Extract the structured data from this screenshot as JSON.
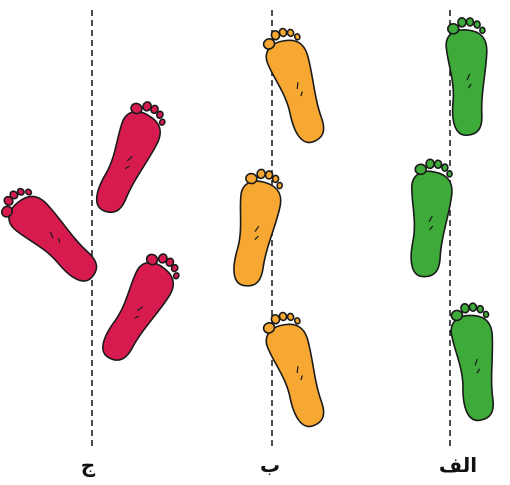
{
  "labels": [
    "ج",
    "ب",
    "الف"
  ]
}
